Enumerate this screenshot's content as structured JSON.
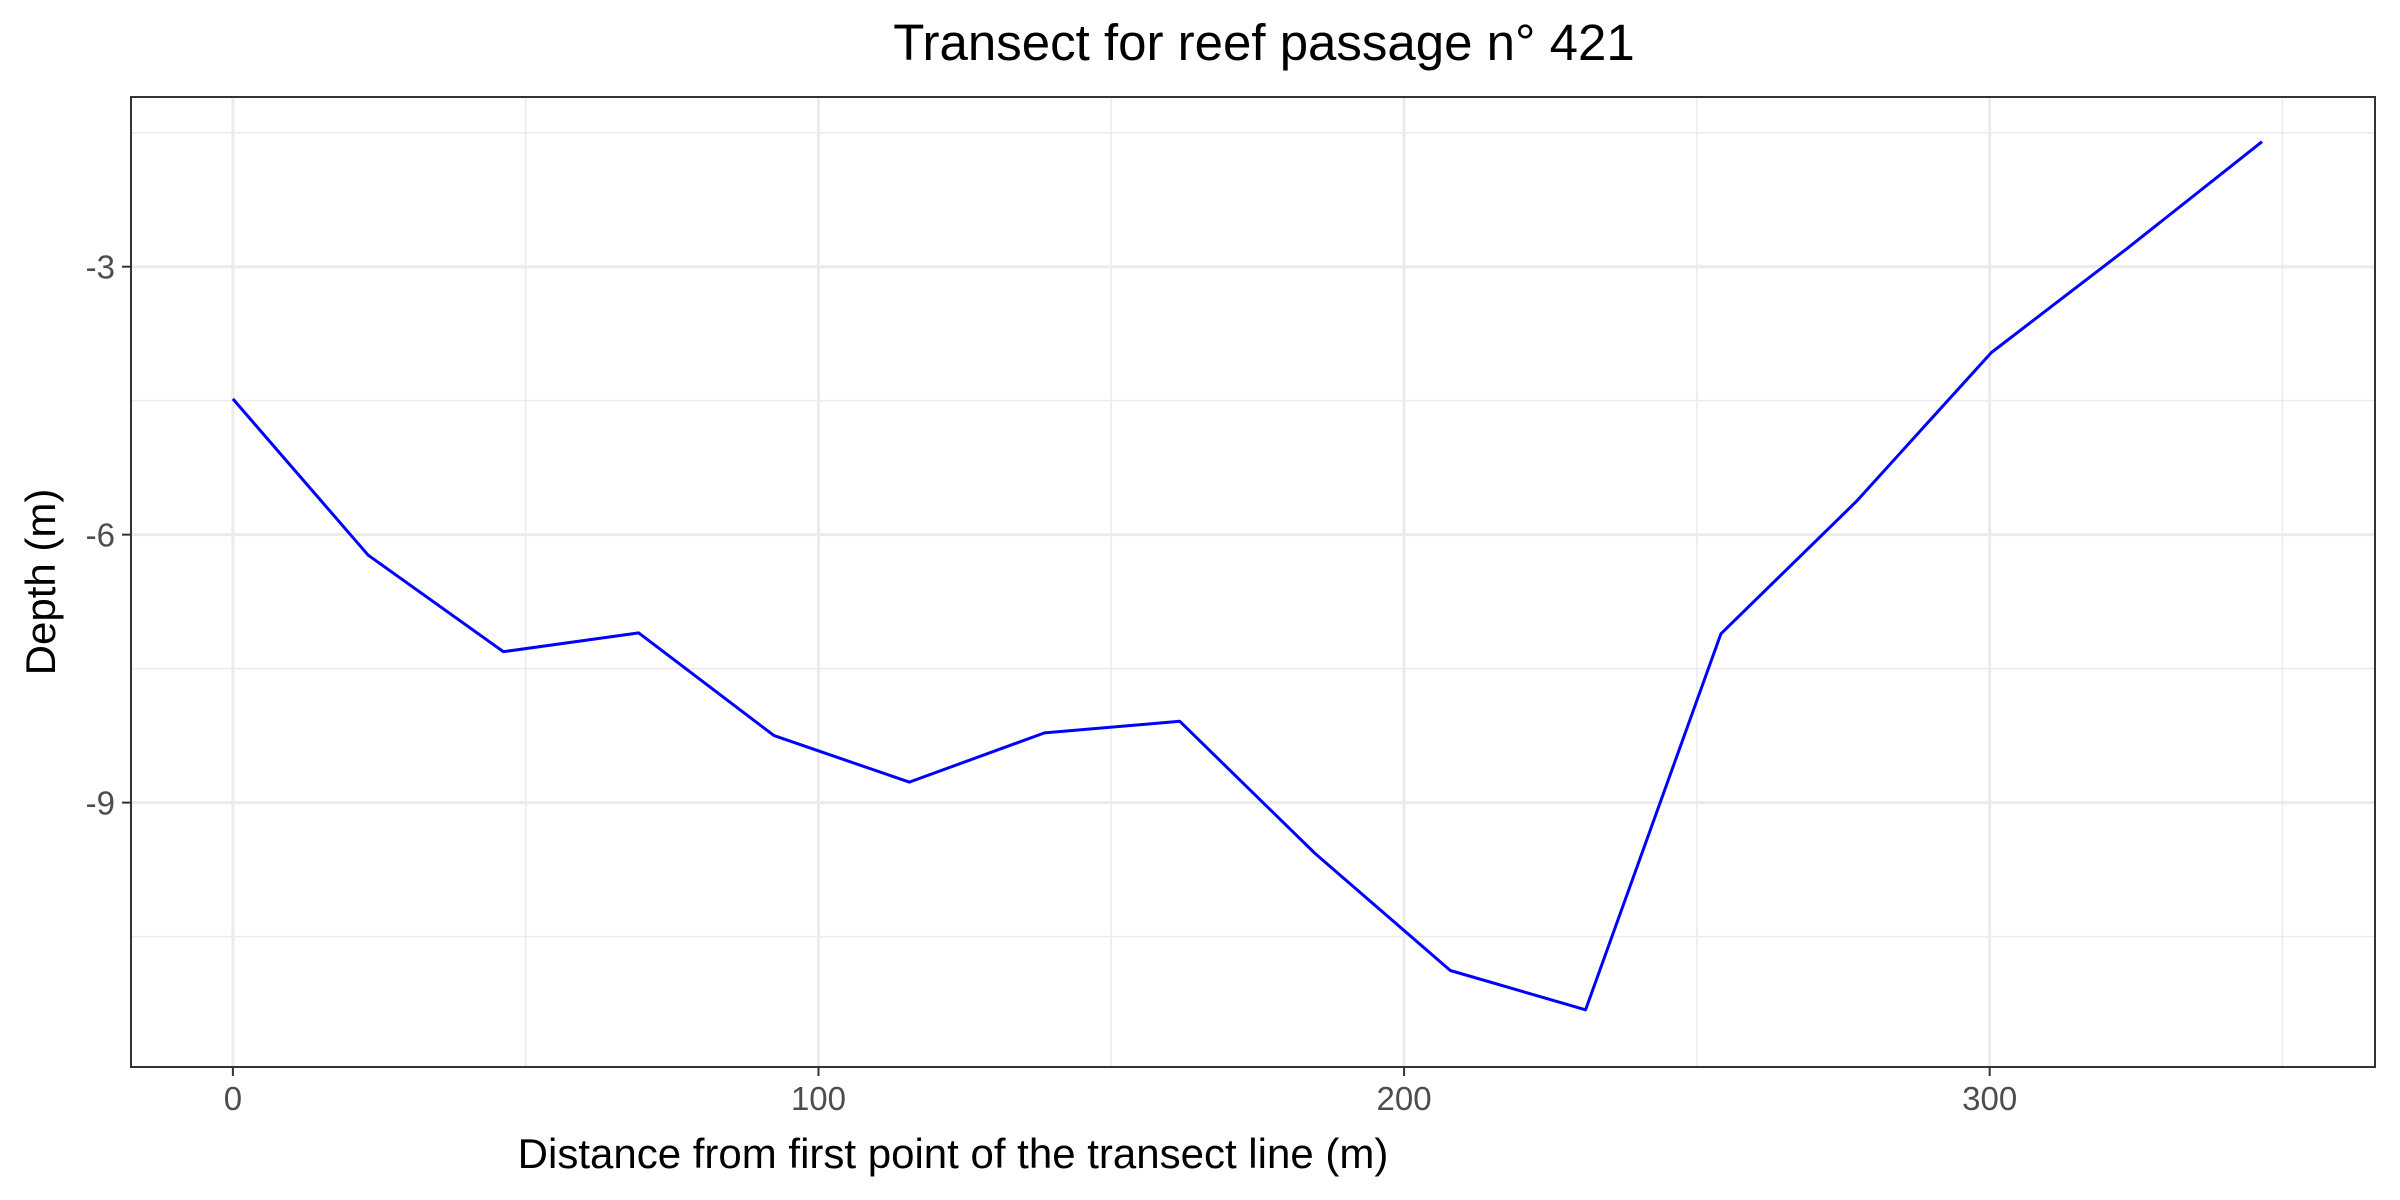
{
  "chart_data": {
    "type": "line",
    "title": "Transect for reef passage n° 421",
    "xlabel": "Distance from first point of the transect line (m)",
    "ylabel": "Depth (m)",
    "xlim": [
      -17.4,
      365.8
    ],
    "ylim": [
      -11.96,
      -1.1
    ],
    "x_ticks": [
      0,
      100,
      200,
      300
    ],
    "x_tick_labels": [
      "0",
      "100",
      "200",
      "300"
    ],
    "y_ticks": [
      -3,
      -6,
      -9
    ],
    "y_tick_labels": [
      "-3",
      "-6",
      "-9"
    ],
    "x_minor_ticks": [
      50,
      150,
      250,
      350
    ],
    "y_minor_ticks": [
      -1.5,
      -4.5,
      -7.5,
      -10.5
    ],
    "grid": true,
    "legend": "none",
    "series": [
      {
        "color": "#0000ff",
        "x": [
          0,
          23.1,
          46.2,
          69.3,
          92.4,
          115.5,
          138.6,
          161.7,
          184.8,
          207.9,
          231,
          254.1,
          277.2,
          300.3,
          323.4,
          346.5
        ],
        "y": [
          -4.48,
          -6.23,
          -7.31,
          -7.1,
          -8.25,
          -8.77,
          -8.22,
          -8.09,
          -9.57,
          -10.88,
          -11.32,
          -7.11,
          -5.63,
          -3.96,
          -2.8,
          -1.6
        ]
      }
    ]
  }
}
